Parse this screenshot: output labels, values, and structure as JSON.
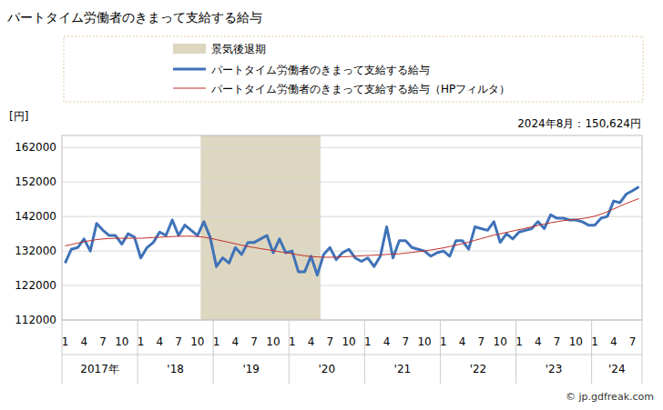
{
  "chart_data": {
    "type": "line",
    "title": "パートタイム労働者のきまって支給する給与",
    "y_unit": "[円]",
    "annotation": "2024年8月：150,624円",
    "credit": "© jp.gdfreak.com",
    "categories": [
      "1",
      null,
      null,
      "4",
      null,
      null,
      "7",
      null,
      null,
      "10",
      null,
      null,
      "1",
      null,
      null,
      "4",
      null,
      null,
      "7",
      null,
      null,
      "10",
      null,
      null,
      "1",
      null,
      null,
      "4",
      null,
      null,
      "7",
      null,
      null,
      "10",
      null,
      null,
      "1",
      null,
      null,
      "4",
      null,
      null,
      "7",
      null,
      null,
      "10",
      null,
      null,
      "1",
      null,
      null,
      "4",
      null,
      null,
      "7",
      null,
      null,
      "10",
      null,
      null,
      "1",
      null,
      null,
      "4",
      null,
      null,
      "7",
      null,
      null,
      "10",
      null,
      null,
      "1",
      null,
      null,
      "4",
      null,
      null,
      "7",
      null,
      null,
      "10",
      null,
      null,
      "1",
      null,
      null,
      "4",
      null,
      null,
      "7",
      null
    ],
    "year_labels": [
      "2017年",
      "'18",
      "'19",
      "'20",
      "'21",
      "'22",
      "'23",
      "'24"
    ],
    "shade": {
      "name": "景気後退期",
      "color": "#ddd6c0",
      "from": 22,
      "to": 40
    },
    "series": [
      {
        "name": "パートタイム労働者のきまって支給する給与",
        "color": "#3f72b8",
        "values": [
          128500,
          132500,
          133000,
          135500,
          132000,
          140000,
          138000,
          136500,
          136500,
          134000,
          137000,
          136000,
          130000,
          133000,
          134500,
          137500,
          136500,
          141000,
          136500,
          139500,
          138000,
          136500,
          140500,
          136000,
          127500,
          130000,
          128500,
          133000,
          131000,
          134500,
          134500,
          135500,
          136500,
          131500,
          135500,
          131500,
          132000,
          126000,
          126000,
          130500,
          125000,
          131000,
          133000,
          129500,
          131500,
          132500,
          130000,
          129000,
          130000,
          127500,
          130500,
          139000,
          130000,
          135000,
          135000,
          133000,
          132500,
          132000,
          130500,
          131500,
          132000,
          130500,
          135000,
          135000,
          132500,
          139000,
          138500,
          138000,
          140500,
          134500,
          137000,
          135500,
          137500,
          138000,
          138500,
          140500,
          138500,
          142500,
          141500,
          141500,
          141000,
          141000,
          140500,
          139500,
          139500,
          141500,
          142000,
          146500,
          146000,
          148500,
          149500,
          150624
        ]
      },
      {
        "name": "パートタイム労働者のきまって支給する給与（HPフィルタ）",
        "color": "#c0302a",
        "values": [
          133500,
          133900,
          134300,
          134700,
          135000,
          135300,
          135500,
          135600,
          135700,
          135700,
          135700,
          135700,
          135700,
          135800,
          135900,
          136000,
          136100,
          136200,
          136300,
          136300,
          136300,
          136200,
          136000,
          135700,
          135300,
          134900,
          134500,
          134100,
          133700,
          133300,
          133000,
          132700,
          132400,
          132100,
          131800,
          131500,
          131200,
          130900,
          130600,
          130400,
          130300,
          130200,
          130200,
          130200,
          130300,
          130400,
          130500,
          130600,
          130700,
          130800,
          130900,
          131000,
          131100,
          131200,
          131400,
          131600,
          131800,
          132000,
          132300,
          132600,
          132900,
          133300,
          133700,
          134100,
          134600,
          135100,
          135600,
          136100,
          136600,
          137000,
          137400,
          137800,
          138200,
          138600,
          139000,
          139400,
          139800,
          140200,
          140500,
          140800,
          141000,
          141200,
          141400,
          141700,
          142100,
          142700,
          143400,
          144200,
          145000,
          145800,
          146500,
          147200
        ]
      }
    ],
    "ylim": [
      112000,
      165500
    ],
    "yticks": [
      112000,
      122000,
      132000,
      142000,
      152000,
      162000
    ],
    "grid": true
  }
}
